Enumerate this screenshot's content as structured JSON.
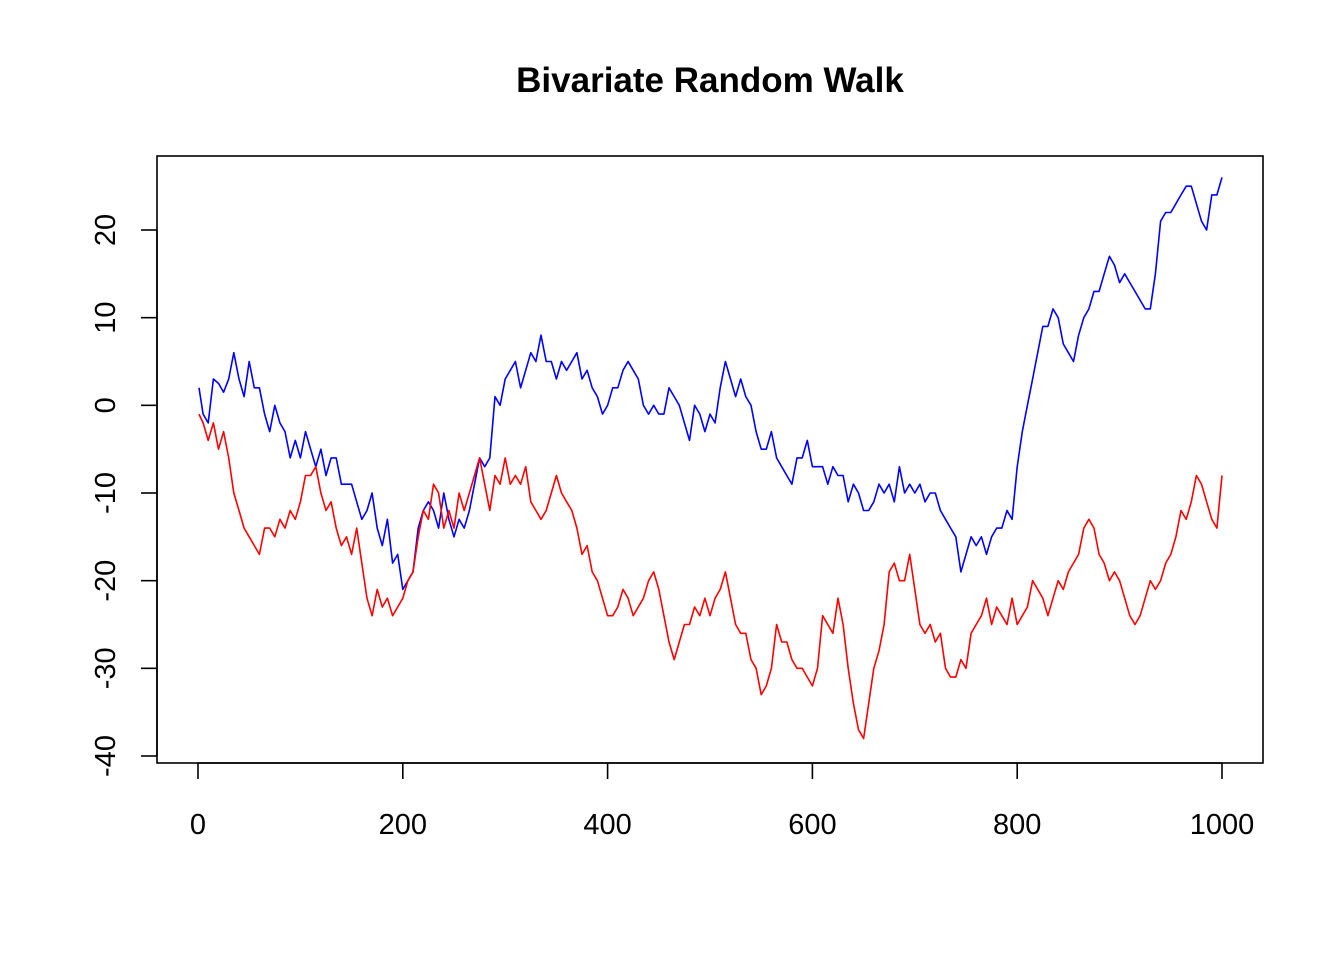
{
  "chart_data": {
    "type": "line",
    "title": "Bivariate Random Walk",
    "xlabel": "",
    "ylabel": "",
    "xlim": [
      0,
      1000
    ],
    "ylim": [
      -40,
      25
    ],
    "x_ticks": [
      0,
      200,
      400,
      600,
      800,
      1000
    ],
    "y_ticks": [
      -40,
      -30,
      -20,
      -10,
      0,
      10,
      20
    ],
    "grid": false,
    "legend": "none",
    "series": [
      {
        "color": "#0000ff",
        "x": [
          1,
          5,
          10,
          15,
          20,
          25,
          30,
          35,
          40,
          45,
          50,
          55,
          60,
          65,
          70,
          75,
          80,
          85,
          90,
          95,
          100,
          105,
          110,
          115,
          120,
          125,
          130,
          135,
          140,
          145,
          150,
          155,
          160,
          165,
          170,
          175,
          180,
          185,
          190,
          195,
          200,
          205,
          210,
          215,
          220,
          225,
          230,
          235,
          240,
          245,
          250,
          255,
          260,
          265,
          270,
          275,
          280,
          285,
          290,
          295,
          300,
          305,
          310,
          315,
          320,
          325,
          330,
          335,
          340,
          345,
          350,
          355,
          360,
          365,
          370,
          375,
          380,
          385,
          390,
          395,
          400,
          405,
          410,
          415,
          420,
          425,
          430,
          435,
          440,
          445,
          450,
          455,
          460,
          465,
          470,
          475,
          480,
          485,
          490,
          495,
          500,
          505,
          510,
          515,
          520,
          525,
          530,
          535,
          540,
          545,
          550,
          555,
          560,
          565,
          570,
          575,
          580,
          585,
          590,
          595,
          600,
          605,
          610,
          615,
          620,
          625,
          630,
          635,
          640,
          645,
          650,
          655,
          660,
          665,
          670,
          675,
          680,
          685,
          690,
          695,
          700,
          705,
          710,
          715,
          720,
          725,
          730,
          735,
          740,
          745,
          750,
          755,
          760,
          765,
          770,
          775,
          780,
          785,
          790,
          795,
          800,
          805,
          810,
          815,
          820,
          825,
          830,
          835,
          840,
          845,
          850,
          855,
          860,
          865,
          870,
          875,
          880,
          885,
          890,
          895,
          900,
          905,
          910,
          915,
          920,
          925,
          930,
          935,
          940,
          945,
          950,
          955,
          960,
          965,
          970,
          975,
          980,
          985,
          990,
          995,
          1000
        ],
        "y": [
          2,
          -1,
          -2,
          3,
          2.5,
          1.5,
          3,
          6,
          3,
          1,
          5,
          2,
          2,
          -1,
          -3,
          0,
          -2,
          -3,
          -6,
          -4,
          -6,
          -3,
          -5,
          -7,
          -5,
          -8,
          -6,
          -6,
          -9,
          -9,
          -9,
          -11,
          -13,
          -12,
          -10,
          -14,
          -16,
          -13,
          -18,
          -17,
          -21,
          -20,
          -19,
          -14,
          -12,
          -11,
          -12,
          -14,
          -10,
          -13,
          -15,
          -13,
          -14,
          -12,
          -9,
          -6,
          -7,
          -6,
          1,
          0,
          3,
          4,
          5,
          2,
          4,
          6,
          5,
          8,
          5,
          5,
          3,
          5,
          4,
          5,
          6,
          3,
          4,
          2,
          1,
          -1,
          0,
          2,
          2,
          4,
          5,
          4,
          3,
          0,
          -1,
          0,
          -1,
          -1,
          2,
          1,
          0,
          -2,
          -4,
          0,
          -1,
          -3,
          -1,
          -2,
          2,
          5,
          3,
          1,
          3,
          1,
          0,
          -3,
          -5,
          -5,
          -3,
          -6,
          -7,
          -8,
          -9,
          -6,
          -6,
          -4,
          -7,
          -7,
          -7,
          -9,
          -7,
          -8,
          -8,
          -11,
          -9,
          -10,
          -12,
          -12,
          -11,
          -9,
          -10,
          -9,
          -11,
          -7,
          -10,
          -9,
          -10,
          -9,
          -11,
          -10,
          -10,
          -12,
          -13,
          -14,
          -15,
          -19,
          -17,
          -15,
          -16,
          -15,
          -17,
          -15,
          -14,
          -14,
          -12,
          -13,
          -7,
          -3,
          0,
          3,
          6,
          9,
          9,
          11,
          10,
          7,
          6,
          5,
          8,
          10,
          11,
          13,
          13,
          15,
          17,
          16,
          14,
          15,
          14,
          13,
          12,
          11,
          11,
          15,
          21,
          22,
          22,
          23,
          24,
          25,
          25,
          23,
          21,
          20,
          24,
          24,
          26
        ]
      },
      {
        "color": "#ff0000",
        "x": [
          1,
          5,
          10,
          15,
          20,
          25,
          30,
          35,
          40,
          45,
          50,
          55,
          60,
          65,
          70,
          75,
          80,
          85,
          90,
          95,
          100,
          105,
          110,
          115,
          120,
          125,
          130,
          135,
          140,
          145,
          150,
          155,
          160,
          165,
          170,
          175,
          180,
          185,
          190,
          195,
          200,
          205,
          210,
          215,
          220,
          225,
          230,
          235,
          240,
          245,
          250,
          255,
          260,
          265,
          270,
          275,
          280,
          285,
          290,
          295,
          300,
          305,
          310,
          315,
          320,
          325,
          330,
          335,
          340,
          345,
          350,
          355,
          360,
          365,
          370,
          375,
          380,
          385,
          390,
          395,
          400,
          405,
          410,
          415,
          420,
          425,
          430,
          435,
          440,
          445,
          450,
          455,
          460,
          465,
          470,
          475,
          480,
          485,
          490,
          495,
          500,
          505,
          510,
          515,
          520,
          525,
          530,
          535,
          540,
          545,
          550,
          555,
          560,
          565,
          570,
          575,
          580,
          585,
          590,
          595,
          600,
          605,
          610,
          615,
          620,
          625,
          630,
          635,
          640,
          645,
          650,
          655,
          660,
          665,
          670,
          675,
          680,
          685,
          690,
          695,
          700,
          705,
          710,
          715,
          720,
          725,
          730,
          735,
          740,
          745,
          750,
          755,
          760,
          765,
          770,
          775,
          780,
          785,
          790,
          795,
          800,
          805,
          810,
          815,
          820,
          825,
          830,
          835,
          840,
          845,
          850,
          855,
          860,
          865,
          870,
          875,
          880,
          885,
          890,
          895,
          900,
          905,
          910,
          915,
          920,
          925,
          930,
          935,
          940,
          945,
          950,
          955,
          960,
          965,
          970,
          975,
          980,
          985,
          990,
          995,
          1000
        ],
        "y": [
          -1,
          -2,
          -4,
          -2,
          -5,
          -3,
          -6,
          -10,
          -12,
          -14,
          -15,
          -16,
          -17,
          -14,
          -14,
          -15,
          -13,
          -14,
          -12,
          -13,
          -11,
          -8,
          -8,
          -7,
          -10,
          -12,
          -11,
          -14,
          -16,
          -15,
          -17,
          -14,
          -18,
          -22,
          -24,
          -21,
          -23,
          -22,
          -24,
          -23,
          -22,
          -20,
          -19,
          -15,
          -12,
          -13,
          -9,
          -10,
          -14,
          -12,
          -14,
          -10,
          -12,
          -10,
          -8,
          -6,
          -9,
          -12,
          -8,
          -9,
          -6,
          -9,
          -8,
          -9,
          -7,
          -11,
          -12,
          -13,
          -12,
          -10,
          -8,
          -10,
          -11,
          -12,
          -14,
          -17,
          -16,
          -19,
          -20,
          -22,
          -24,
          -24,
          -23,
          -21,
          -22,
          -24,
          -23,
          -22,
          -20,
          -19,
          -21,
          -24,
          -27,
          -29,
          -27,
          -25,
          -25,
          -23,
          -24,
          -22,
          -24,
          -22,
          -21,
          -19,
          -22,
          -25,
          -26,
          -26,
          -29,
          -30,
          -33,
          -32,
          -30,
          -25,
          -27,
          -27,
          -29,
          -30,
          -30,
          -31,
          -32,
          -30,
          -24,
          -25,
          -26,
          -22,
          -25,
          -30,
          -34,
          -37,
          -38,
          -34,
          -30,
          -28,
          -25,
          -19,
          -18,
          -20,
          -20,
          -17,
          -21,
          -25,
          -26,
          -25,
          -27,
          -26,
          -30,
          -31,
          -31,
          -29,
          -30,
          -26,
          -25,
          -24,
          -22,
          -25,
          -23,
          -24,
          -25,
          -22,
          -25,
          -24,
          -23,
          -20,
          -21,
          -22,
          -24,
          -22,
          -20,
          -21,
          -19,
          -18,
          -17,
          -14,
          -13,
          -14,
          -17,
          -18,
          -20,
          -19,
          -20,
          -22,
          -24,
          -25,
          -24,
          -22,
          -20,
          -21,
          -20,
          -18,
          -17,
          -15,
          -12,
          -13,
          -11,
          -8,
          -9,
          -11,
          -13,
          -14,
          -8
        ]
      }
    ]
  }
}
